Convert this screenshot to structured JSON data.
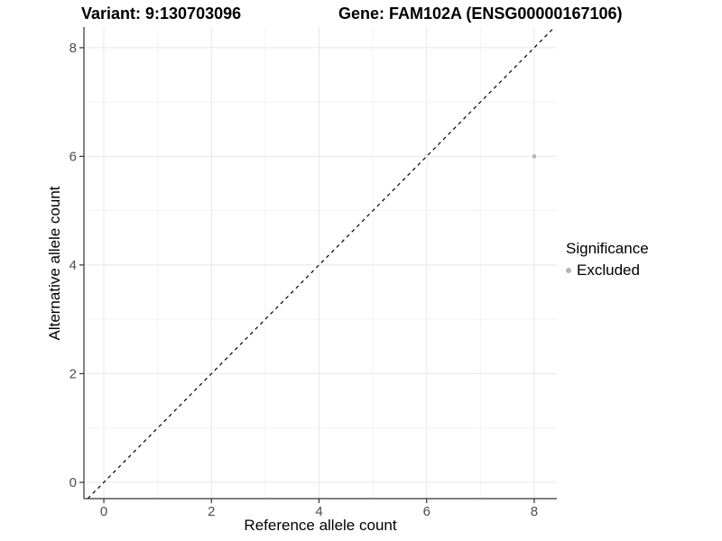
{
  "title_left": "Variant: 9:130703096",
  "title_right": "Gene: FAM102A (ENSG00000167106)",
  "legend": {
    "title": "Significance",
    "items": [
      {
        "label": "Excluded",
        "color": "#b5b5b5"
      }
    ]
  },
  "chart_data": {
    "type": "scatter",
    "title": "Variant: 9:130703096 / Gene: FAM102A (ENSG00000167106)",
    "xlabel": "Reference allele count",
    "ylabel": "Alternative allele count",
    "x_ticks": [
      0,
      2,
      4,
      6,
      8
    ],
    "y_ticks": [
      0,
      2,
      4,
      6,
      8
    ],
    "x_minor_ticks": [
      1,
      3,
      5,
      7
    ],
    "y_minor_ticks": [
      1,
      3,
      5,
      7
    ],
    "xlim": [
      -0.37,
      8.42
    ],
    "ylim": [
      -0.3,
      8.38
    ],
    "grid": true,
    "legend_position": "right",
    "series": [
      {
        "name": "Excluded",
        "color": "#b5b5b5",
        "points": [
          {
            "x": 8,
            "y": 6
          }
        ]
      }
    ],
    "reference_line": {
      "type": "identity y=x",
      "style": "dashed",
      "color": "#000000"
    }
  },
  "colors": {
    "background": "#ffffff",
    "grid_major": "#e8e8e8",
    "grid_minor": "#f3f3f3",
    "axis_line": "#333333",
    "tick_label": "#4d4d4d",
    "point": "#b5b5b5"
  }
}
